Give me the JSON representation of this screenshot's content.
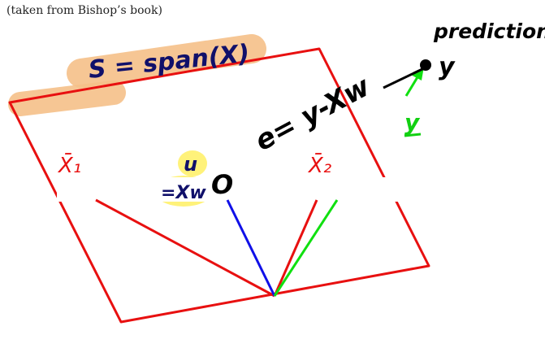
{
  "caption": "(taken from Bishop’s book)",
  "labels": {
    "prediction": "prediction",
    "span": "S = span(X)",
    "error": "e= y-Xw",
    "y_point": "y",
    "y_vector": "y",
    "x1": "X̄₁",
    "x2": "X̄₂",
    "u": "u",
    "xw": "=Xw",
    "zero": "O"
  },
  "colors": {
    "plane": "#e81010",
    "blue_vector": "#1010e8",
    "green_vector": "#10e010",
    "ink": "#000000",
    "label_red": "#e81010",
    "label_navy": "#10106a",
    "label_green": "#12d012",
    "highlight_orange": "#f5c088",
    "highlight_yellow": "#fff27a"
  }
}
